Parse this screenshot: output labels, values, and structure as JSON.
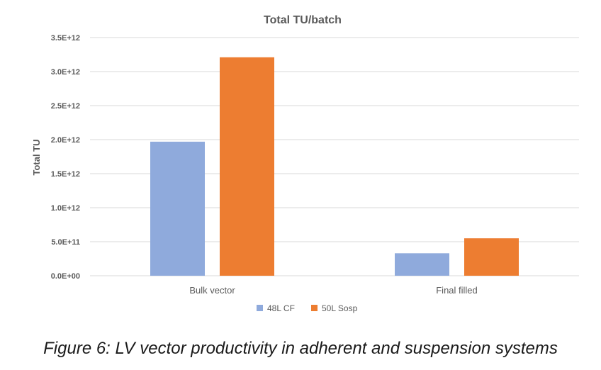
{
  "caption": "Figure 6: LV vector productivity in adherent and suspension systems",
  "chart_data": {
    "type": "bar",
    "title": "Total TU/batch",
    "xlabel": "",
    "ylabel": "Total TU",
    "categories": [
      "Bulk vector",
      "Final filled"
    ],
    "series": [
      {
        "name": "48L CF",
        "color": "#8faadc",
        "values": [
          1970000000000.0,
          330000000000.0
        ]
      },
      {
        "name": "50L Sosp",
        "color": "#ed7d31",
        "values": [
          3210000000000.0,
          550000000000.0
        ]
      }
    ],
    "ylim": [
      0,
      3500000000000.0
    ],
    "yticks": [
      0,
      500000000000.0,
      1000000000000.0,
      1500000000000.0,
      2000000000000.0,
      2500000000000.0,
      3000000000000.0,
      3500000000000.0
    ],
    "ytick_labels": [
      "0.0E+00",
      "5.0E+11",
      "1.0E+12",
      "1.5E+12",
      "2.0E+12",
      "2.5E+12",
      "3.0E+12",
      "3.5E+12"
    ],
    "grid": true,
    "legend_position": "bottom"
  }
}
